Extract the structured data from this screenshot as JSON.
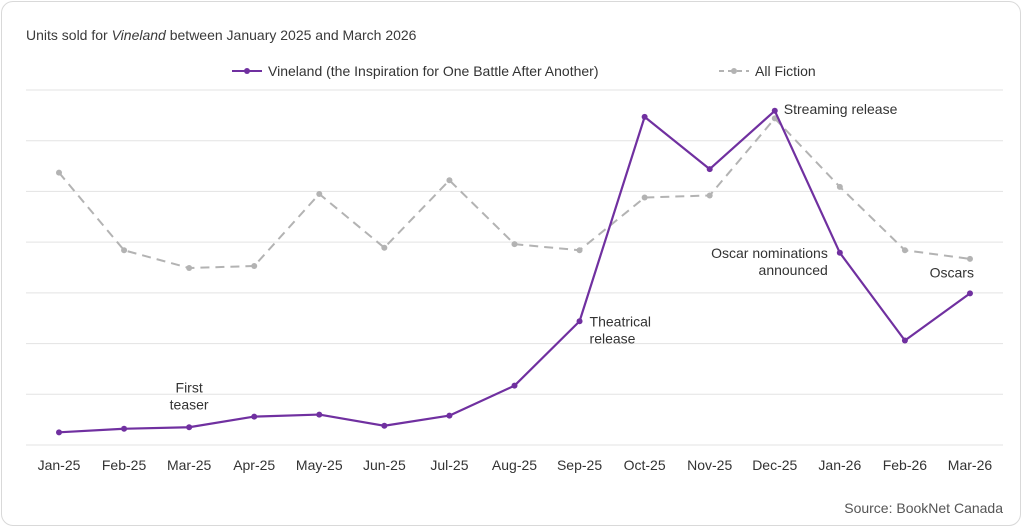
{
  "chart_data": {
    "type": "line",
    "title_parts": [
      "Units sold for ",
      "Vineland",
      " between January 2025 and March 2026"
    ],
    "categories": [
      "Jan-25",
      "Feb-25",
      "Mar-25",
      "Apr-25",
      "May-25",
      "Jun-25",
      "Jul-25",
      "Aug-25",
      "Sep-25",
      "Oct-25",
      "Nov-25",
      "Dec-25",
      "Jan-26",
      "Feb-26",
      "Mar-26"
    ],
    "ylim": [
      0,
      7
    ],
    "grid": true,
    "legend_position": "top-center",
    "series": [
      {
        "name": "Vineland (the Inspiration for One Battle After Another)",
        "color": "#7030a0",
        "style": "solid",
        "values": [
          0.25,
          0.32,
          0.35,
          0.56,
          0.6,
          0.38,
          0.58,
          1.17,
          2.44,
          6.47,
          5.44,
          6.59,
          3.79,
          2.06,
          2.99
        ]
      },
      {
        "name": "All Fiction",
        "color": "#b3b3b3",
        "style": "dashed",
        "values": [
          5.37,
          3.84,
          3.49,
          3.53,
          4.95,
          3.89,
          5.22,
          3.96,
          3.84,
          4.88,
          4.92,
          6.44,
          5.09,
          3.84,
          3.67
        ]
      }
    ],
    "annotations": [
      {
        "lines": [
          "First",
          "teaser"
        ],
        "anchor": "Mar-25"
      },
      {
        "lines": [
          "Theatrical",
          "release"
        ],
        "anchor": "Sep-25"
      },
      {
        "lines": [
          "Streaming release"
        ],
        "anchor": "Dec-25"
      },
      {
        "lines": [
          "Oscar nominations",
          "announced"
        ],
        "anchor": "Jan-26"
      },
      {
        "lines": [
          "Oscars"
        ],
        "anchor": "Mar-26"
      }
    ],
    "source": "Source: BookNet Canada"
  }
}
